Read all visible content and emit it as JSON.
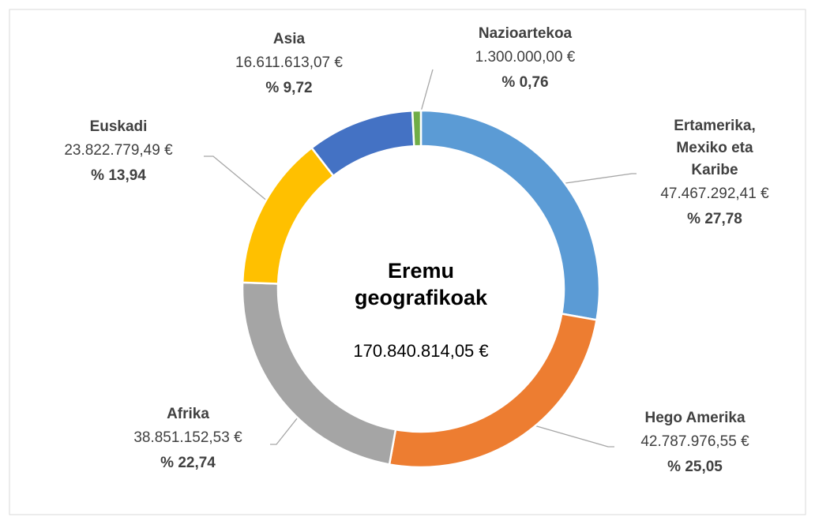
{
  "chart_data": {
    "type": "donut",
    "title": "Eremu geografikoak",
    "total_label": "170.840.814,05 €",
    "categories": [
      "Ertamerika,\nMexiko eta\nKaribe",
      "Hego Amerika",
      "Afrika",
      "Euskadi",
      "Asia",
      "Nazioartekoa"
    ],
    "values": [
      47467292.41,
      42787976.55,
      38851152.53,
      23822779.49,
      16611613.07,
      1300000.0
    ],
    "value_labels": [
      "47.467.292,41 €",
      "42.787.976,55 €",
      "38.851.152,53 €",
      "23.822.779,49 €",
      "16.611.613,07 €",
      "1.300.000,00 €"
    ],
    "percent_sign": "%",
    "percent_labels": [
      "27,78",
      "25,05",
      "22,74",
      "13,94",
      "9,72",
      "0,76"
    ],
    "colors": [
      "#5b9bd5",
      "#ed7d31",
      "#a5a5a5",
      "#ffc000",
      "#4472c4",
      "#70ad47"
    ]
  }
}
